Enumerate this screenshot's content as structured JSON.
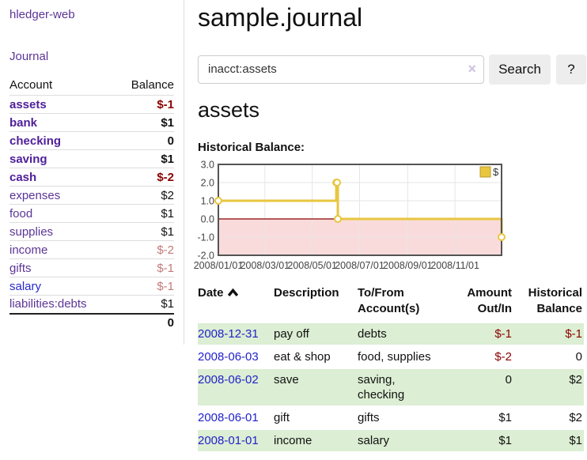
{
  "colors": {
    "link_purple_visited": "#5c3596",
    "link_purple_current": "#50209a",
    "link_blue_unvisited": "#2929cc",
    "link_blue_date": "#2222cc",
    "negative_strong": "#8b0000",
    "negative_muted": "#c47a7a",
    "row_highlight_green": "#dceed3",
    "chart_line_gold": "#e8c63f",
    "chart_negative_pink": "#fadbdb",
    "chart_zero_line": "#8b0000",
    "chart_border": "#545454",
    "chart_grid": "#e6e6e6"
  },
  "sidebar": {
    "app_title": "hledger-web",
    "nav_journal": "Journal",
    "accounts_header": {
      "account": "Account",
      "balance": "Balance"
    },
    "accounts": [
      {
        "name": "assets",
        "depth": 1,
        "style": "current",
        "balance": "$-1",
        "balance_style": "neg-strong",
        "bold": true
      },
      {
        "name": "bank",
        "depth": 2,
        "style": "current",
        "balance": "$1",
        "balance_style": "pos",
        "bold": true
      },
      {
        "name": "checking",
        "depth": 3,
        "style": "current",
        "balance": "0",
        "balance_style": "pos",
        "bold": true
      },
      {
        "name": "saving",
        "depth": 3,
        "style": "current",
        "balance": "$1",
        "balance_style": "pos",
        "bold": true
      },
      {
        "name": "cash",
        "depth": 2,
        "style": "current",
        "balance": "$-2",
        "balance_style": "neg-strong",
        "bold": true
      },
      {
        "name": "expenses",
        "depth": 1,
        "style": "visited",
        "balance": "$2",
        "balance_style": "pos",
        "bold": false
      },
      {
        "name": "food",
        "depth": 2,
        "style": "visited",
        "balance": "$1",
        "balance_style": "pos",
        "bold": false
      },
      {
        "name": "supplies",
        "depth": 2,
        "style": "visited",
        "balance": "$1",
        "balance_style": "pos",
        "bold": false
      },
      {
        "name": "income",
        "depth": 1,
        "style": "visited",
        "balance": "$-2",
        "balance_style": "neg-muted",
        "bold": false
      },
      {
        "name": "gifts",
        "depth": 2,
        "style": "visited",
        "balance": "$-1",
        "balance_style": "neg-muted",
        "bold": false
      },
      {
        "name": "salary",
        "depth": 2,
        "style": "unvisited",
        "balance": "$-1",
        "balance_style": "neg-muted",
        "bold": false
      },
      {
        "name": "liabilities:debts",
        "depth": 1,
        "style": "visited",
        "balance": "$1",
        "balance_style": "pos",
        "bold": false
      }
    ],
    "total": "0"
  },
  "header": {
    "title": "sample.journal"
  },
  "search": {
    "value": "inacct:assets",
    "clear_icon": "×",
    "button_label": "Search",
    "help_label": "?"
  },
  "register": {
    "account_title": "assets",
    "chart_label": "Historical Balance:"
  },
  "chart_data": {
    "type": "line",
    "step": true,
    "title": "Historical Balance:",
    "series": [
      {
        "name": "$",
        "x": [
          "2008-01-01",
          "2008-06-01",
          "2008-06-02",
          "2008-06-03",
          "2008-12-31"
        ],
        "y": [
          1,
          2,
          2,
          0,
          -1
        ]
      }
    ],
    "xlim": [
      "2008-01-01",
      "2008-12-31"
    ],
    "ylim": [
      -2,
      3
    ],
    "y_ticks": [
      3.0,
      2.0,
      1.0,
      0.0,
      -1.0,
      -2.0
    ],
    "x_ticks": [
      "2008/01/01",
      "2008/03/01",
      "2008/05/01",
      "2008/07/01",
      "2008/09/01",
      "2008/11/01"
    ],
    "grid": true,
    "legend_position": "top-right",
    "legend_label": "$",
    "negative_region_shaded": true
  },
  "table": {
    "columns": [
      {
        "label_lines": [
          "Date"
        ],
        "sorted": "asc"
      },
      {
        "label_lines": [
          "Description"
        ]
      },
      {
        "label_lines": [
          "To/From",
          "Account(s)"
        ]
      },
      {
        "label_lines": [
          "Amount",
          "Out/In"
        ],
        "align": "right"
      },
      {
        "label_lines": [
          "Historical",
          "Balance"
        ],
        "align": "right"
      }
    ],
    "rows": [
      {
        "date": "2008-12-31",
        "description": "pay off",
        "accounts_lines": [
          "debts"
        ],
        "amount": "$-1",
        "amount_style": "neg",
        "balance": "$-1",
        "balance_style": "neg",
        "highlight": true
      },
      {
        "date": "2008-06-03",
        "description": "eat & shop",
        "accounts_lines": [
          "food, supplies"
        ],
        "amount": "$-2",
        "amount_style": "neg",
        "balance": "0",
        "balance_style": "pos",
        "highlight": false
      },
      {
        "date": "2008-06-02",
        "description": "save",
        "accounts_lines": [
          "saving,",
          "checking"
        ],
        "amount": "0",
        "amount_style": "pos",
        "balance": "$2",
        "balance_style": "pos",
        "highlight": true
      },
      {
        "date": "2008-06-01",
        "description": "gift",
        "accounts_lines": [
          "gifts"
        ],
        "amount": "$1",
        "amount_style": "pos",
        "balance": "$2",
        "balance_style": "pos",
        "highlight": false
      },
      {
        "date": "2008-01-01",
        "description": "income",
        "accounts_lines": [
          "salary"
        ],
        "amount": "$1",
        "amount_style": "pos",
        "balance": "$1",
        "balance_style": "pos",
        "highlight": true
      }
    ]
  }
}
